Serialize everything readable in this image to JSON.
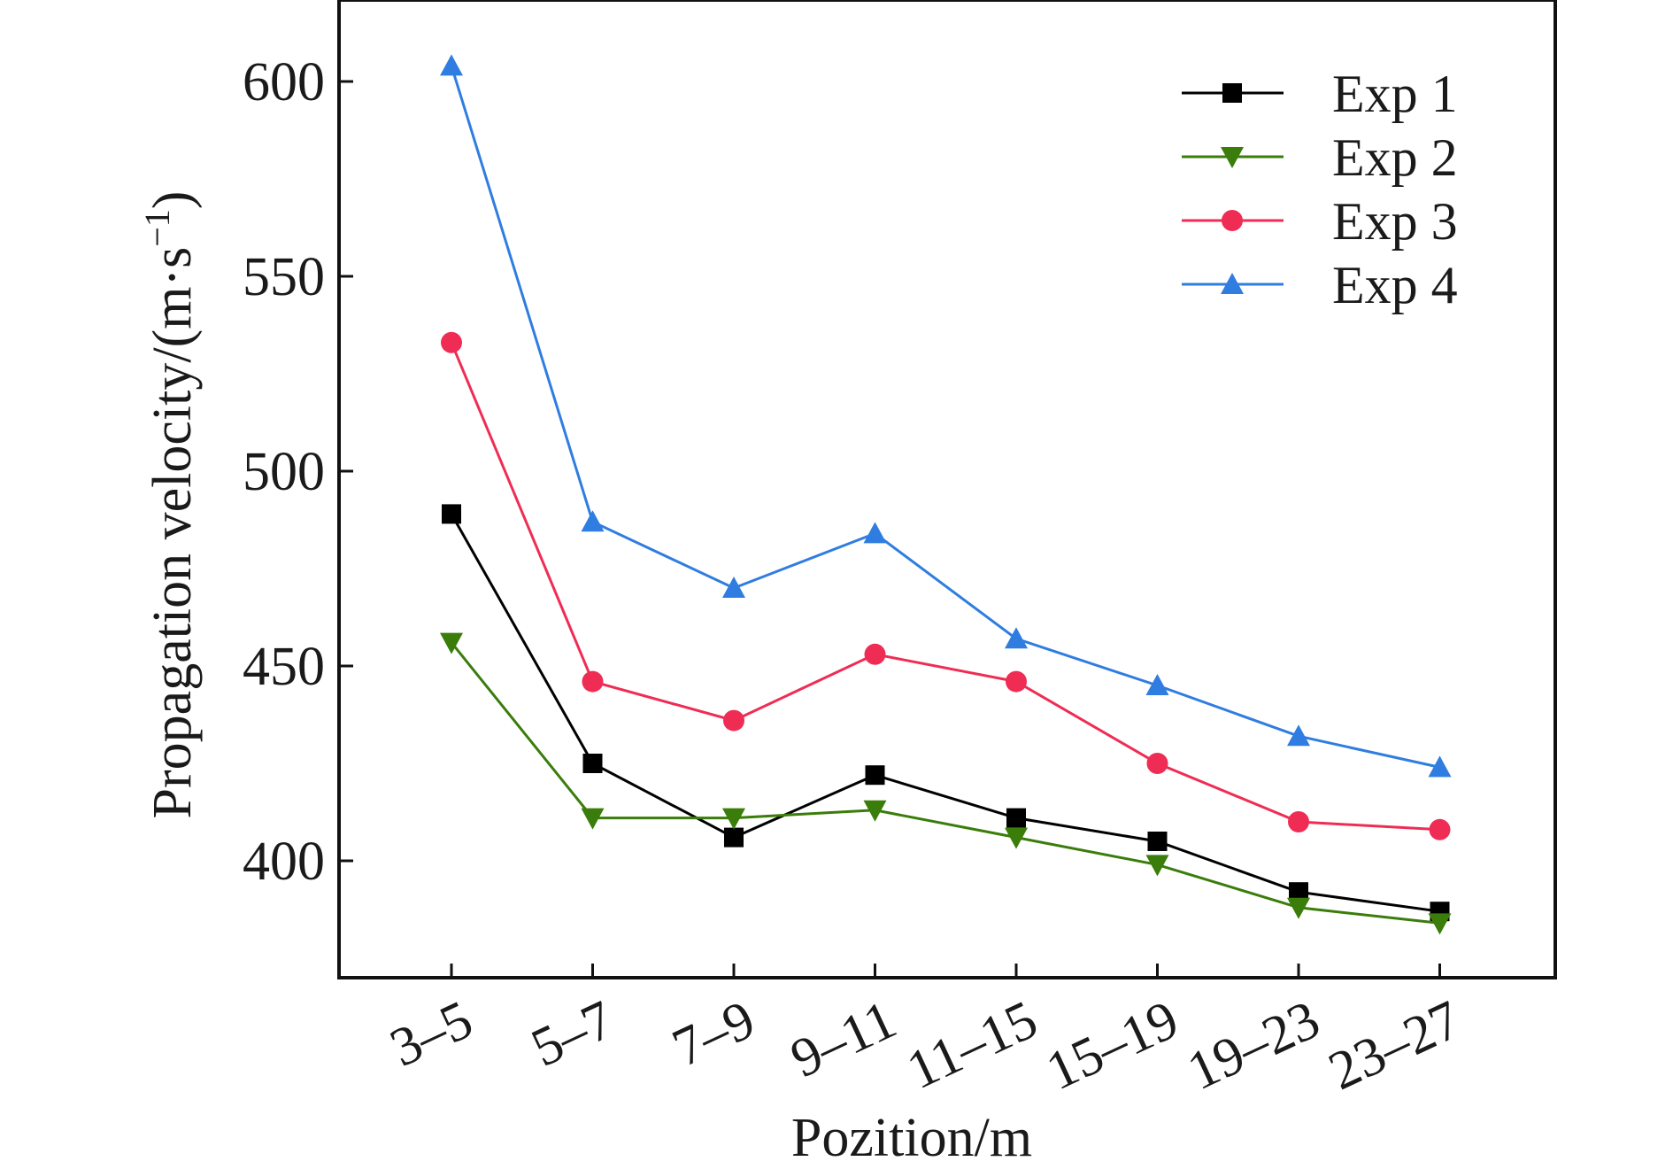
{
  "chart_data": {
    "type": "line",
    "title": "",
    "xlabel": "Pozition/m",
    "ylabel": "Propagation velocity/(m·s",
    "ylabel_sup": "−1",
    "ylabel_close": ")",
    "categories": [
      "3–5",
      "5–7",
      "7–9",
      "9–11",
      "11–15",
      "15–19",
      "19–23",
      "23–27"
    ],
    "ylim": [
      370,
      620
    ],
    "yticks": [
      400,
      450,
      500,
      550,
      600
    ],
    "grid": false,
    "legend_position": "top-right",
    "series": [
      {
        "name": "Exp 1",
        "color": "#000000",
        "marker": "square",
        "values": [
          489,
          425,
          406,
          422,
          411,
          405,
          392,
          387
        ]
      },
      {
        "name": "Exp 2",
        "color": "#3a7d0a",
        "marker": "triangle-down",
        "values": [
          456,
          411,
          411,
          413,
          406,
          399,
          388,
          384
        ]
      },
      {
        "name": "Exp 3",
        "color": "#ef2d54",
        "marker": "circle",
        "values": [
          533,
          446,
          436,
          453,
          446,
          425,
          410,
          408
        ]
      },
      {
        "name": "Exp 4",
        "color": "#2f7de1",
        "marker": "triangle-up",
        "values": [
          604,
          487,
          470,
          484,
          457,
          445,
          432,
          424
        ]
      }
    ]
  }
}
